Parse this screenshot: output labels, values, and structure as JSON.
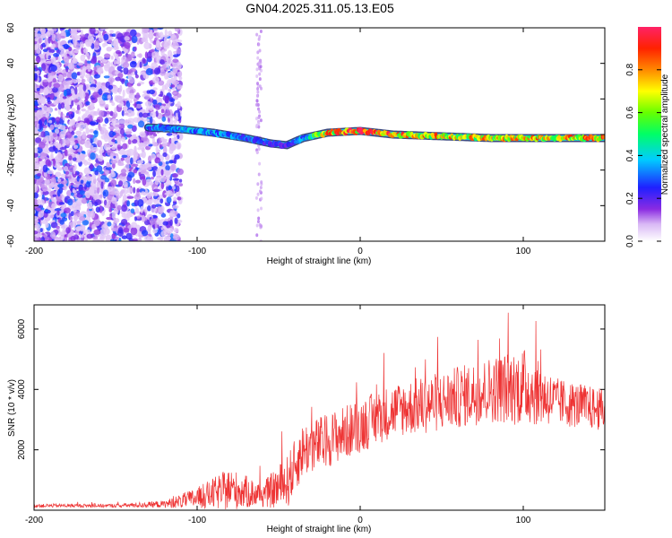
{
  "title": "GN04.2025.311.05.13.E05",
  "colors": {
    "snr_line": "#ee3333",
    "frame": "#000000",
    "background": "#ffffff"
  },
  "chart_data": [
    {
      "type": "heatmap",
      "xlabel": "Height of straight line (km)",
      "ylabel": "Frequency (Hz)",
      "xlim": [
        -200,
        150
      ],
      "ylim": [
        -60,
        60
      ],
      "xticks": [
        -200,
        -100,
        0,
        100
      ],
      "yticks": [
        -60,
        -40,
        -20,
        0,
        20,
        40,
        60
      ],
      "colorbar": {
        "label": "Normalized spectral amplitude",
        "range": [
          0,
          1
        ],
        "ticks": [
          0.0,
          0.2,
          0.4,
          0.6,
          0.8
        ],
        "colormap": "rainbow (white-violet-blue-cyan-green-yellow-red)"
      },
      "ridge": {
        "description_points_x": [
          -130,
          -110,
          -90,
          -70,
          -55,
          -45,
          -35,
          -20,
          0,
          20,
          50,
          80,
          100,
          150
        ],
        "description_points_y": [
          4,
          3,
          1,
          -2,
          -5,
          -6,
          -2,
          1,
          2,
          0,
          -1,
          -2,
          -2,
          -2
        ],
        "amplitude": [
          0.35,
          0.4,
          0.4,
          0.35,
          0.3,
          0.3,
          0.4,
          0.9,
          1.0,
          0.95,
          0.85,
          0.85,
          0.9,
          0.9
        ]
      },
      "grid": false
    },
    {
      "type": "line",
      "xlabel": "Height of straight line (km)",
      "ylabel": "SNR (10 * v/v)",
      "xlim": [
        -200,
        150
      ],
      "ylim": [
        0,
        6800
      ],
      "xticks": [
        -200,
        -100,
        0,
        100
      ],
      "yticks": [
        2000,
        4000,
        6000
      ],
      "envelope": {
        "x": [
          -200,
          -150,
          -120,
          -100,
          -80,
          -60,
          -45,
          -35,
          -25,
          0,
          20,
          50,
          80,
          100,
          120,
          150
        ],
        "mean": [
          150,
          150,
          200,
          400,
          700,
          500,
          900,
          2000,
          2200,
          2800,
          3300,
          3600,
          4000,
          4100,
          3600,
          3300
        ],
        "spread": [
          60,
          60,
          120,
          350,
          700,
          400,
          900,
          900,
          900,
          900,
          900,
          1000,
          1100,
          1300,
          800,
          700
        ]
      },
      "grid": false
    }
  ]
}
